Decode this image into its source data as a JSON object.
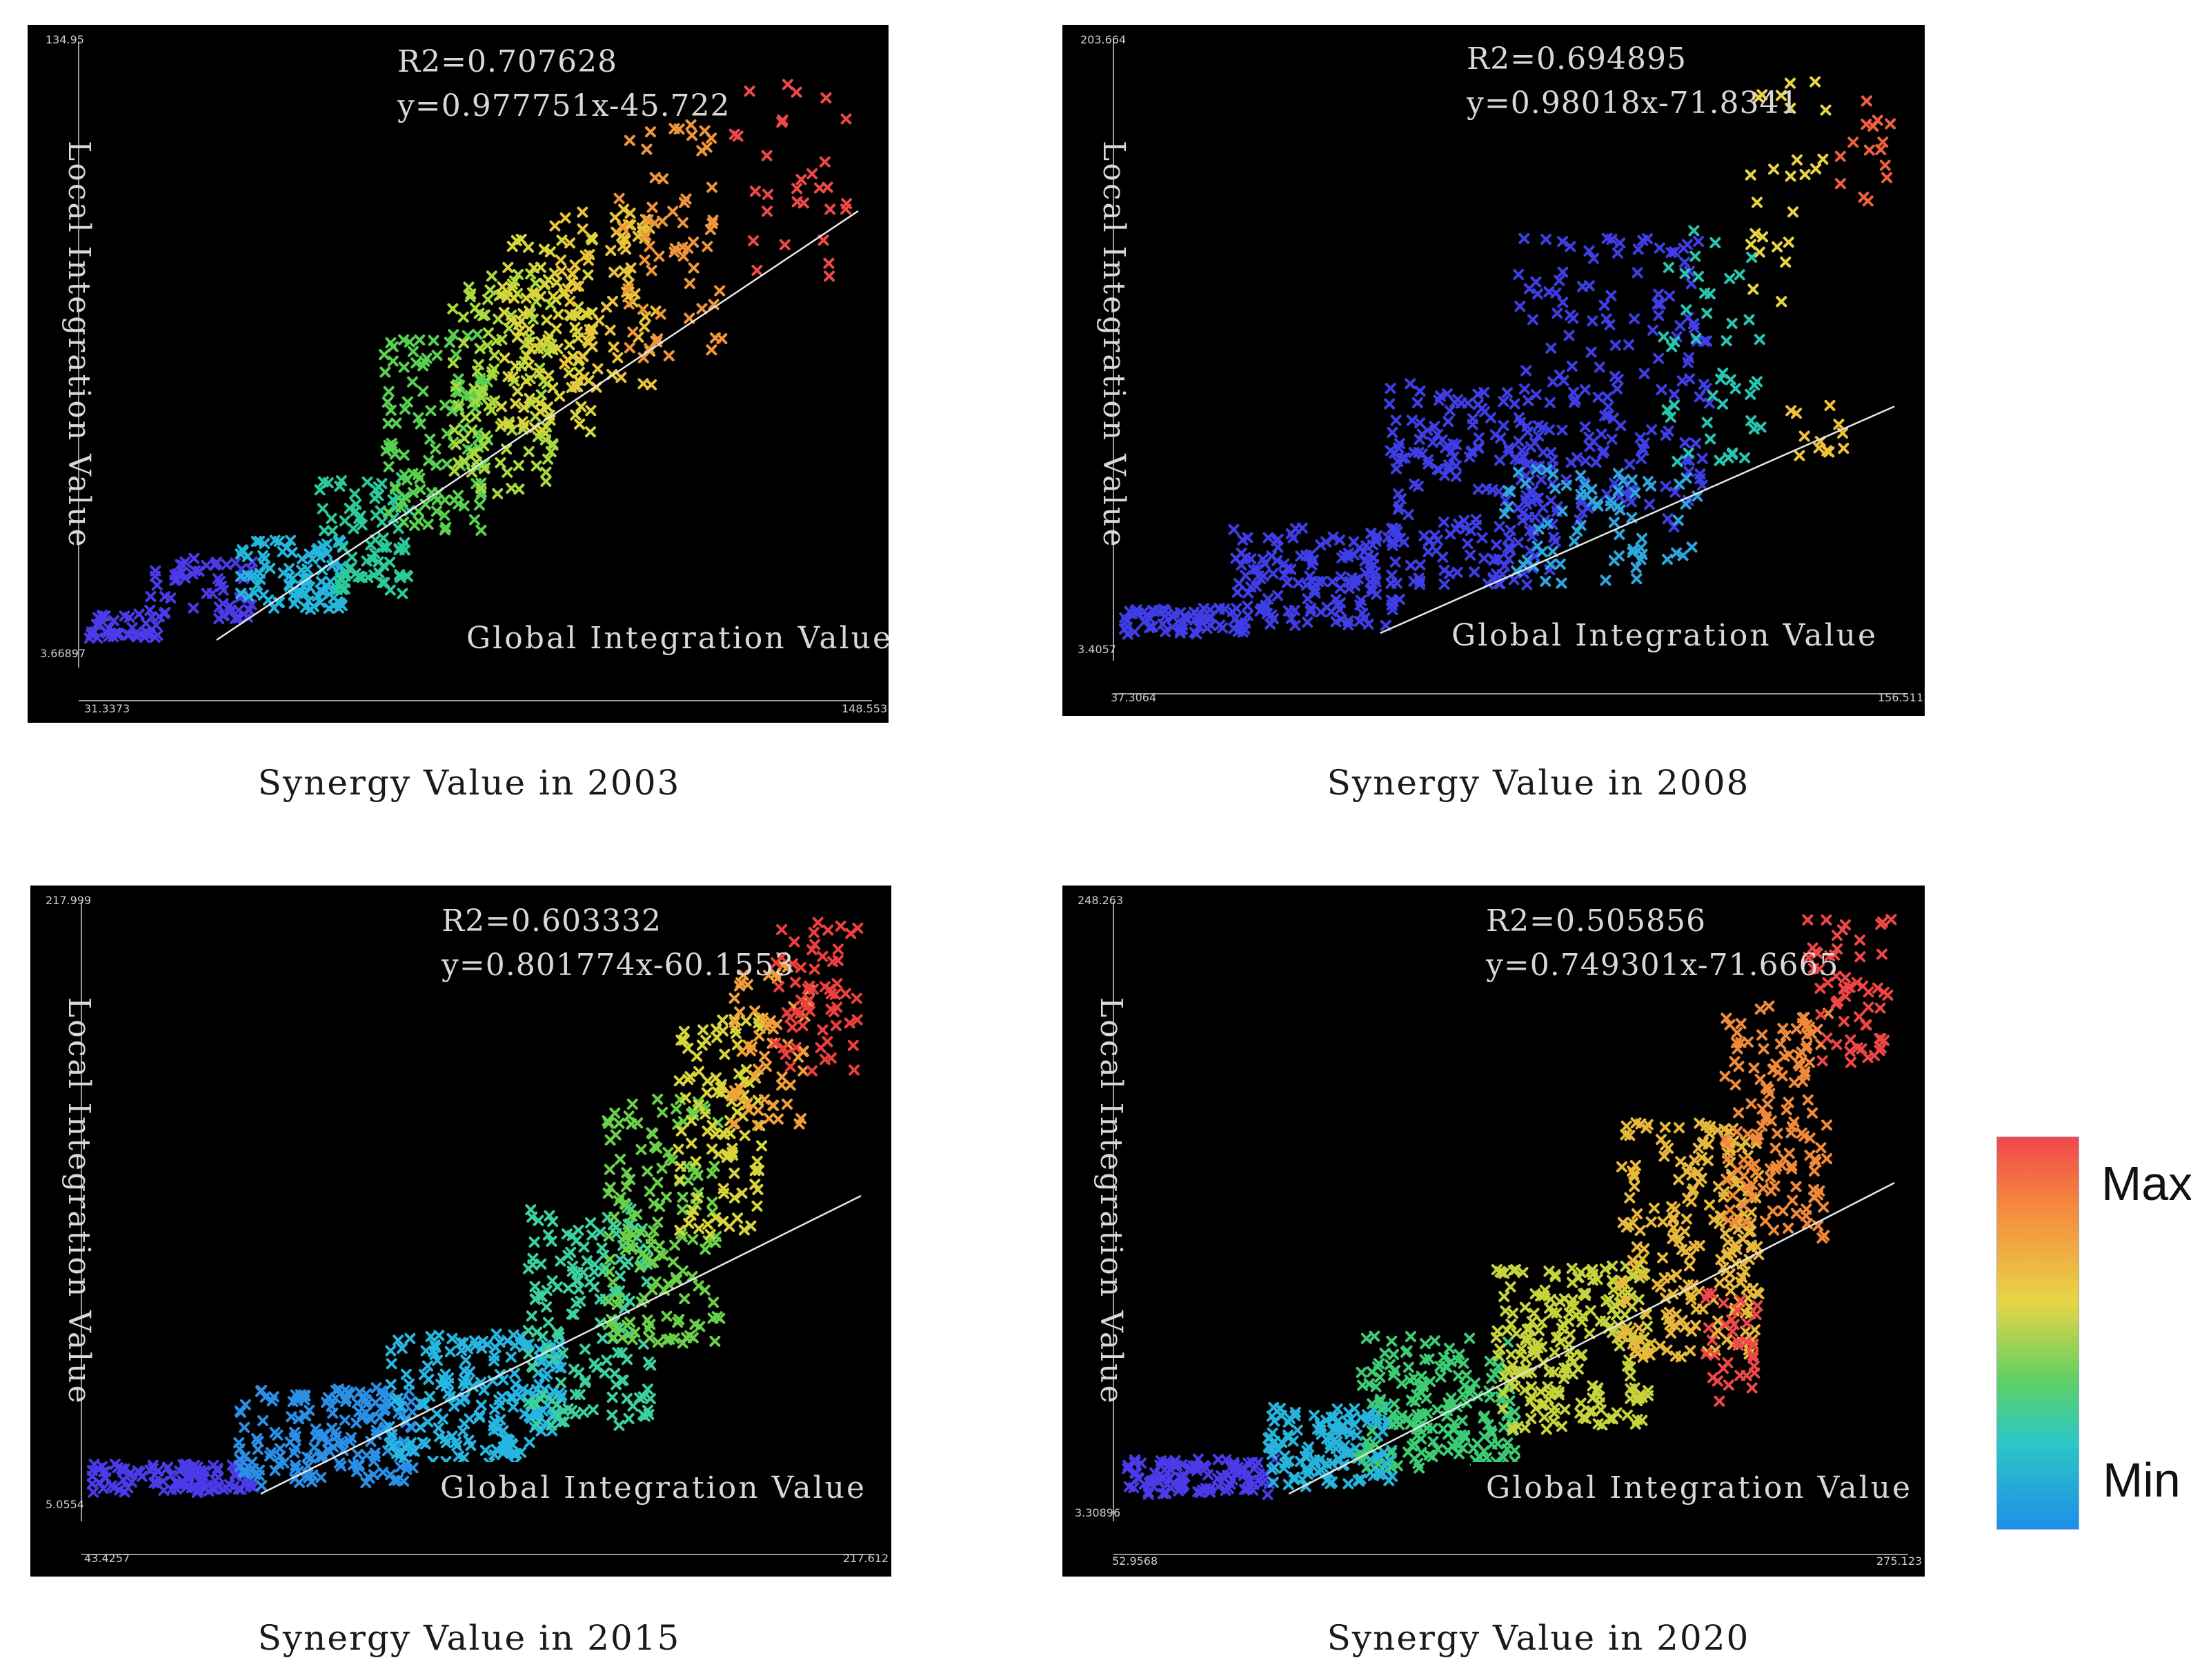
{
  "legend": {
    "max_label": "Max",
    "min_label": "Min",
    "colors": [
      "#f0484b",
      "#f58a3e",
      "#e8d546",
      "#5fd064",
      "#2cc7c6",
      "#1e8fe8",
      "#3d3de6"
    ]
  },
  "chart_data": [
    {
      "type": "scatter",
      "title": "Synergy Value in 2003",
      "xlabel": "Global Integration Value",
      "ylabel": "Local Integration Value",
      "r2_text": "R2=0.707628",
      "equation_text": "y=0.977751x-45.722",
      "x_min_label": "31.3373",
      "x_max_label": "148.553",
      "y_min_label": "3.66897",
      "y_max_label": "134.95",
      "xlim": [
        31.3373,
        148.553
      ],
      "ylim": [
        3.66897,
        134.95
      ],
      "fit": {
        "slope": 0.977751,
        "intercept": -45.722
      },
      "clusters": [
        {
          "x": [
            31,
            42
          ],
          "y": [
            4,
            10
          ],
          "color": "#4a3ae8",
          "n": 40
        },
        {
          "x": [
            40,
            56
          ],
          "y": [
            8,
            22
          ],
          "color": "#4a3ae8",
          "n": 60
        },
        {
          "x": [
            54,
            70
          ],
          "y": [
            10,
            26
          ],
          "color": "#24b6dc",
          "n": 90
        },
        {
          "x": [
            66,
            80
          ],
          "y": [
            14,
            40
          ],
          "color": "#2cc99a",
          "n": 80
        },
        {
          "x": [
            76,
            92
          ],
          "y": [
            28,
            72
          ],
          "color": "#58d050",
          "n": 120
        },
        {
          "x": [
            86,
            102
          ],
          "y": [
            36,
            86
          ],
          "color": "#a8d93e",
          "n": 110
        },
        {
          "x": [
            94,
            108
          ],
          "y": [
            50,
            94
          ],
          "color": "#d8d43c",
          "n": 110
        },
        {
          "x": [
            102,
            118
          ],
          "y": [
            60,
            100
          ],
          "color": "#e9c43a",
          "n": 70
        },
        {
          "x": [
            112,
            128
          ],
          "y": [
            66,
            120
          ],
          "color": "#f0953a",
          "n": 60
        },
        {
          "x": [
            128,
            148
          ],
          "y": [
            84,
            130
          ],
          "color": "#ee4848",
          "n": 30
        }
      ]
    },
    {
      "type": "scatter",
      "title": "Synergy Value in 2008",
      "xlabel": "Global Integration Value",
      "ylabel": "Local Integration Value",
      "r2_text": "R2=0.694895",
      "equation_text": "y=0.98018x-71.8341",
      "x_min_label": "37.3064",
      "x_max_label": "156.511",
      "y_min_label": "3.4057",
      "y_max_label": "203.664",
      "xlim": [
        37.3064,
        156.511
      ],
      "ylim": [
        3.4057,
        203.664
      ],
      "fit": {
        "slope": 0.98018,
        "intercept": -71.8341
      },
      "clusters": [
        {
          "x": [
            37,
            56
          ],
          "y": [
            3,
            12
          ],
          "color": "#3f3ee6",
          "n": 70
        },
        {
          "x": [
            54,
            80
          ],
          "y": [
            6,
            40
          ],
          "color": "#3f3ee6",
          "n": 150
        },
        {
          "x": [
            78,
            104
          ],
          "y": [
            20,
            90
          ],
          "color": "#3f3ee6",
          "n": 190
        },
        {
          "x": [
            98,
            128
          ],
          "y": [
            40,
            140
          ],
          "color": "#3f3ee6",
          "n": 170
        },
        {
          "x": [
            96,
            126
          ],
          "y": [
            20,
            60
          ],
          "color": "#2ea6e0",
          "n": 70
        },
        {
          "x": [
            120,
            136
          ],
          "y": [
            60,
            150
          ],
          "color": "#28c6b0",
          "n": 45
        },
        {
          "x": [
            134,
            146
          ],
          "y": [
            110,
            200
          ],
          "color": "#e8d546",
          "n": 25
        },
        {
          "x": [
            140,
            152
          ],
          "y": [
            60,
            90
          ],
          "color": "#f0c23c",
          "n": 12
        },
        {
          "x": [
            148,
            156
          ],
          "y": [
            140,
            190
          ],
          "color": "#f0603e",
          "n": 15
        }
      ]
    },
    {
      "type": "scatter",
      "title": "Synergy Value in 2015",
      "xlabel": "Global Integration Value",
      "ylabel": "Local Integration Value",
      "r2_text": "R2=0.603332",
      "equation_text": "y=0.801774x-60.1553",
      "x_min_label": "43.4257",
      "x_max_label": "217.612",
      "y_min_label": "5.0554",
      "y_max_label": "217.999",
      "xlim": [
        43.4257,
        217.612
      ],
      "ylim": [
        5.0554,
        217.999
      ],
      "fit": {
        "slope": 0.801774,
        "intercept": -60.1553
      },
      "clusters": [
        {
          "x": [
            43,
            80
          ],
          "y": [
            5,
            16
          ],
          "color": "#4a3ae8",
          "n": 110
        },
        {
          "x": [
            76,
            116
          ],
          "y": [
            8,
            44
          ],
          "color": "#2a8fe6",
          "n": 180
        },
        {
          "x": [
            110,
            150
          ],
          "y": [
            16,
            64
          ],
          "color": "#27b6e2",
          "n": 200
        },
        {
          "x": [
            142,
            170
          ],
          "y": [
            30,
            110
          ],
          "color": "#3cd0a0",
          "n": 160
        },
        {
          "x": [
            160,
            186
          ],
          "y": [
            60,
            150
          ],
          "color": "#6ad04a",
          "n": 150
        },
        {
          "x": [
            176,
            196
          ],
          "y": [
            100,
            180
          ],
          "color": "#d8d43c",
          "n": 100
        },
        {
          "x": [
            188,
            206
          ],
          "y": [
            140,
            200
          ],
          "color": "#f0a03a",
          "n": 60
        },
        {
          "x": [
            198,
            217
          ],
          "y": [
            160,
            215
          ],
          "color": "#ee3f3f",
          "n": 60
        }
      ]
    },
    {
      "type": "scatter",
      "title": "Synergy Value in 2020",
      "xlabel": "Global Integration Value",
      "ylabel": "Local Integration Value",
      "r2_text": "R2=0.505856",
      "equation_text": "y=0.749301x-71.6665",
      "x_min_label": "52.9568",
      "x_max_label": "275.123",
      "y_min_label": "3.30896",
      "y_max_label": "248.263",
      "xlim": [
        52.9568,
        275.123
      ],
      "ylim": [
        3.30896,
        248.263
      ],
      "fit": {
        "slope": 0.749301,
        "intercept": -71.6665
      },
      "clusters": [
        {
          "x": [
            53,
            96
          ],
          "y": [
            3,
            18
          ],
          "color": "#4a3ae8",
          "n": 110
        },
        {
          "x": [
            94,
            130
          ],
          "y": [
            6,
            40
          ],
          "color": "#26b4dc",
          "n": 140
        },
        {
          "x": [
            120,
            166
          ],
          "y": [
            14,
            70
          ],
          "color": "#3ccc74",
          "n": 180
        },
        {
          "x": [
            160,
            204
          ],
          "y": [
            30,
            100
          ],
          "color": "#c6d33c",
          "n": 220
        },
        {
          "x": [
            196,
            236
          ],
          "y": [
            60,
            160
          ],
          "color": "#e8b83c",
          "n": 220
        },
        {
          "x": [
            226,
            256
          ],
          "y": [
            110,
            210
          ],
          "color": "#f08a3a",
          "n": 140
        },
        {
          "x": [
            220,
            236
          ],
          "y": [
            40,
            90
          ],
          "color": "#ee4848",
          "n": 35
        },
        {
          "x": [
            250,
            275
          ],
          "y": [
            180,
            246
          ],
          "color": "#ee4545",
          "n": 60
        }
      ]
    }
  ]
}
